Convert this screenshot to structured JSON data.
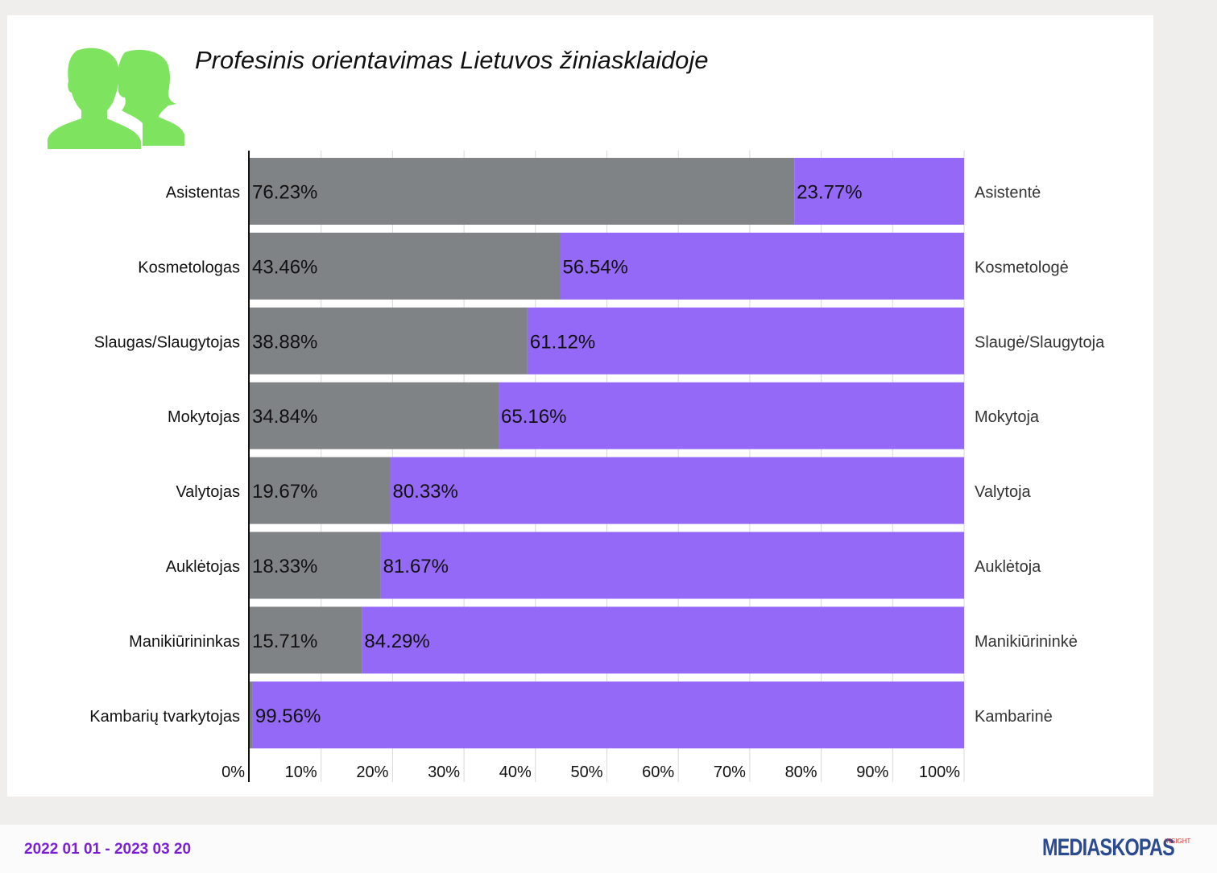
{
  "title": "Profesinis orientavimas Lietuvos žiniasklaidoje",
  "colors": {
    "male": "#808386",
    "female": "#9569f7",
    "icon": "#7ee35e",
    "date": "#7a1fd6",
    "brand": "#2b4a8f",
    "brand_sub": "#e0342f"
  },
  "icon": "people-icon",
  "chart_data": {
    "type": "bar",
    "orientation": "horizontal",
    "stacked": true,
    "xlim": [
      0,
      100
    ],
    "x_ticks": [
      "0%",
      "10%",
      "20%",
      "30%",
      "40%",
      "50%",
      "60%",
      "70%",
      "80%",
      "90%",
      "100%"
    ],
    "grid": true,
    "categories": [
      "Asistentas",
      "Kosmetologas",
      "Slaugas/Slaugytojas",
      "Mokytojas",
      "Valytojas",
      "Auklėtojas",
      "Manikiūrininkas",
      "Kambarių tvarkytojas"
    ],
    "categories_right": [
      "Asistentė",
      "Kosmetologė",
      "Slaugė/Slaugytoja",
      "Mokytoja",
      "Valytoja",
      "Auklėtoja",
      "Manikiūrininkė",
      "Kambarinė"
    ],
    "series": [
      {
        "values": [
          76.23,
          43.46,
          38.88,
          34.84,
          19.67,
          18.33,
          15.71,
          0.44
        ],
        "labels": [
          "76.23%",
          "43.46%",
          "38.88%",
          "34.84%",
          "19.67%",
          "18.33%",
          "15.71%",
          ""
        ]
      },
      {
        "values": [
          23.77,
          56.54,
          61.12,
          65.16,
          80.33,
          81.67,
          84.29,
          99.56
        ],
        "labels": [
          "23.77%",
          "56.54%",
          "61.12%",
          "65.16%",
          "80.33%",
          "81.67%",
          "84.29%",
          "99.56%"
        ]
      }
    ]
  },
  "footer": {
    "date_range": "2022 01 01 - 2023 03 20",
    "brand": "MEDIASKOPAS",
    "brand_sub": "INSIGHT"
  }
}
